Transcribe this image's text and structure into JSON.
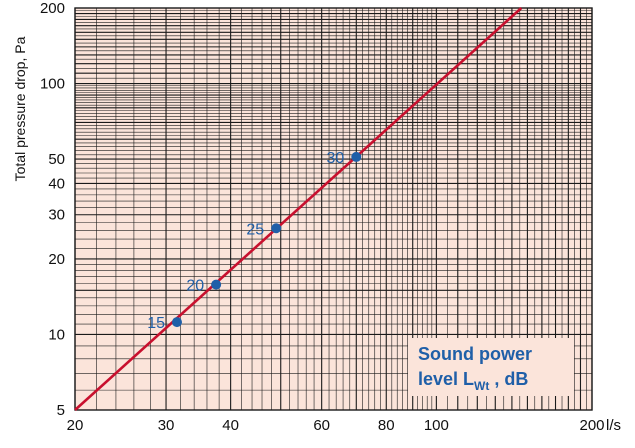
{
  "chart_data": {
    "type": "line",
    "xscale": "log",
    "yscale": "log",
    "xlim": [
      20,
      200
    ],
    "ylim": [
      5,
      200
    ],
    "x_ticks": [
      20,
      30,
      40,
      60,
      80,
      100,
      200
    ],
    "x_tick_labels": [
      "20",
      "30",
      "40",
      "60",
      "80",
      "100",
      "200"
    ],
    "x_unit": "l/s",
    "y_ticks": [
      5,
      10,
      20,
      30,
      40,
      50,
      100,
      200
    ],
    "y_tick_labels": [
      "5",
      "10",
      "20",
      "30",
      "40",
      "50",
      "100",
      "200"
    ],
    "ylabel": "Total pressure drop, Pa",
    "grid": true,
    "series": [
      {
        "x": [
          20,
          146
        ],
        "y": [
          5,
          200
        ]
      }
    ],
    "points": [
      {
        "x": 31.5,
        "y": 11.2,
        "label": "15"
      },
      {
        "x": 37.5,
        "y": 15.8,
        "label": "20"
      },
      {
        "x": 49,
        "y": 26.5,
        "label": "25"
      },
      {
        "x": 70,
        "y": 51,
        "label": "30"
      }
    ],
    "legend": {
      "line1": "Sound power",
      "line2_main": "level L",
      "line2_sub": "Wt",
      "line2_suffix": " , dB"
    },
    "colors": {
      "background": "#fbe4da",
      "grid": "#1a1a1a",
      "line": "#c8102e",
      "points": "#1f5fa8"
    }
  }
}
